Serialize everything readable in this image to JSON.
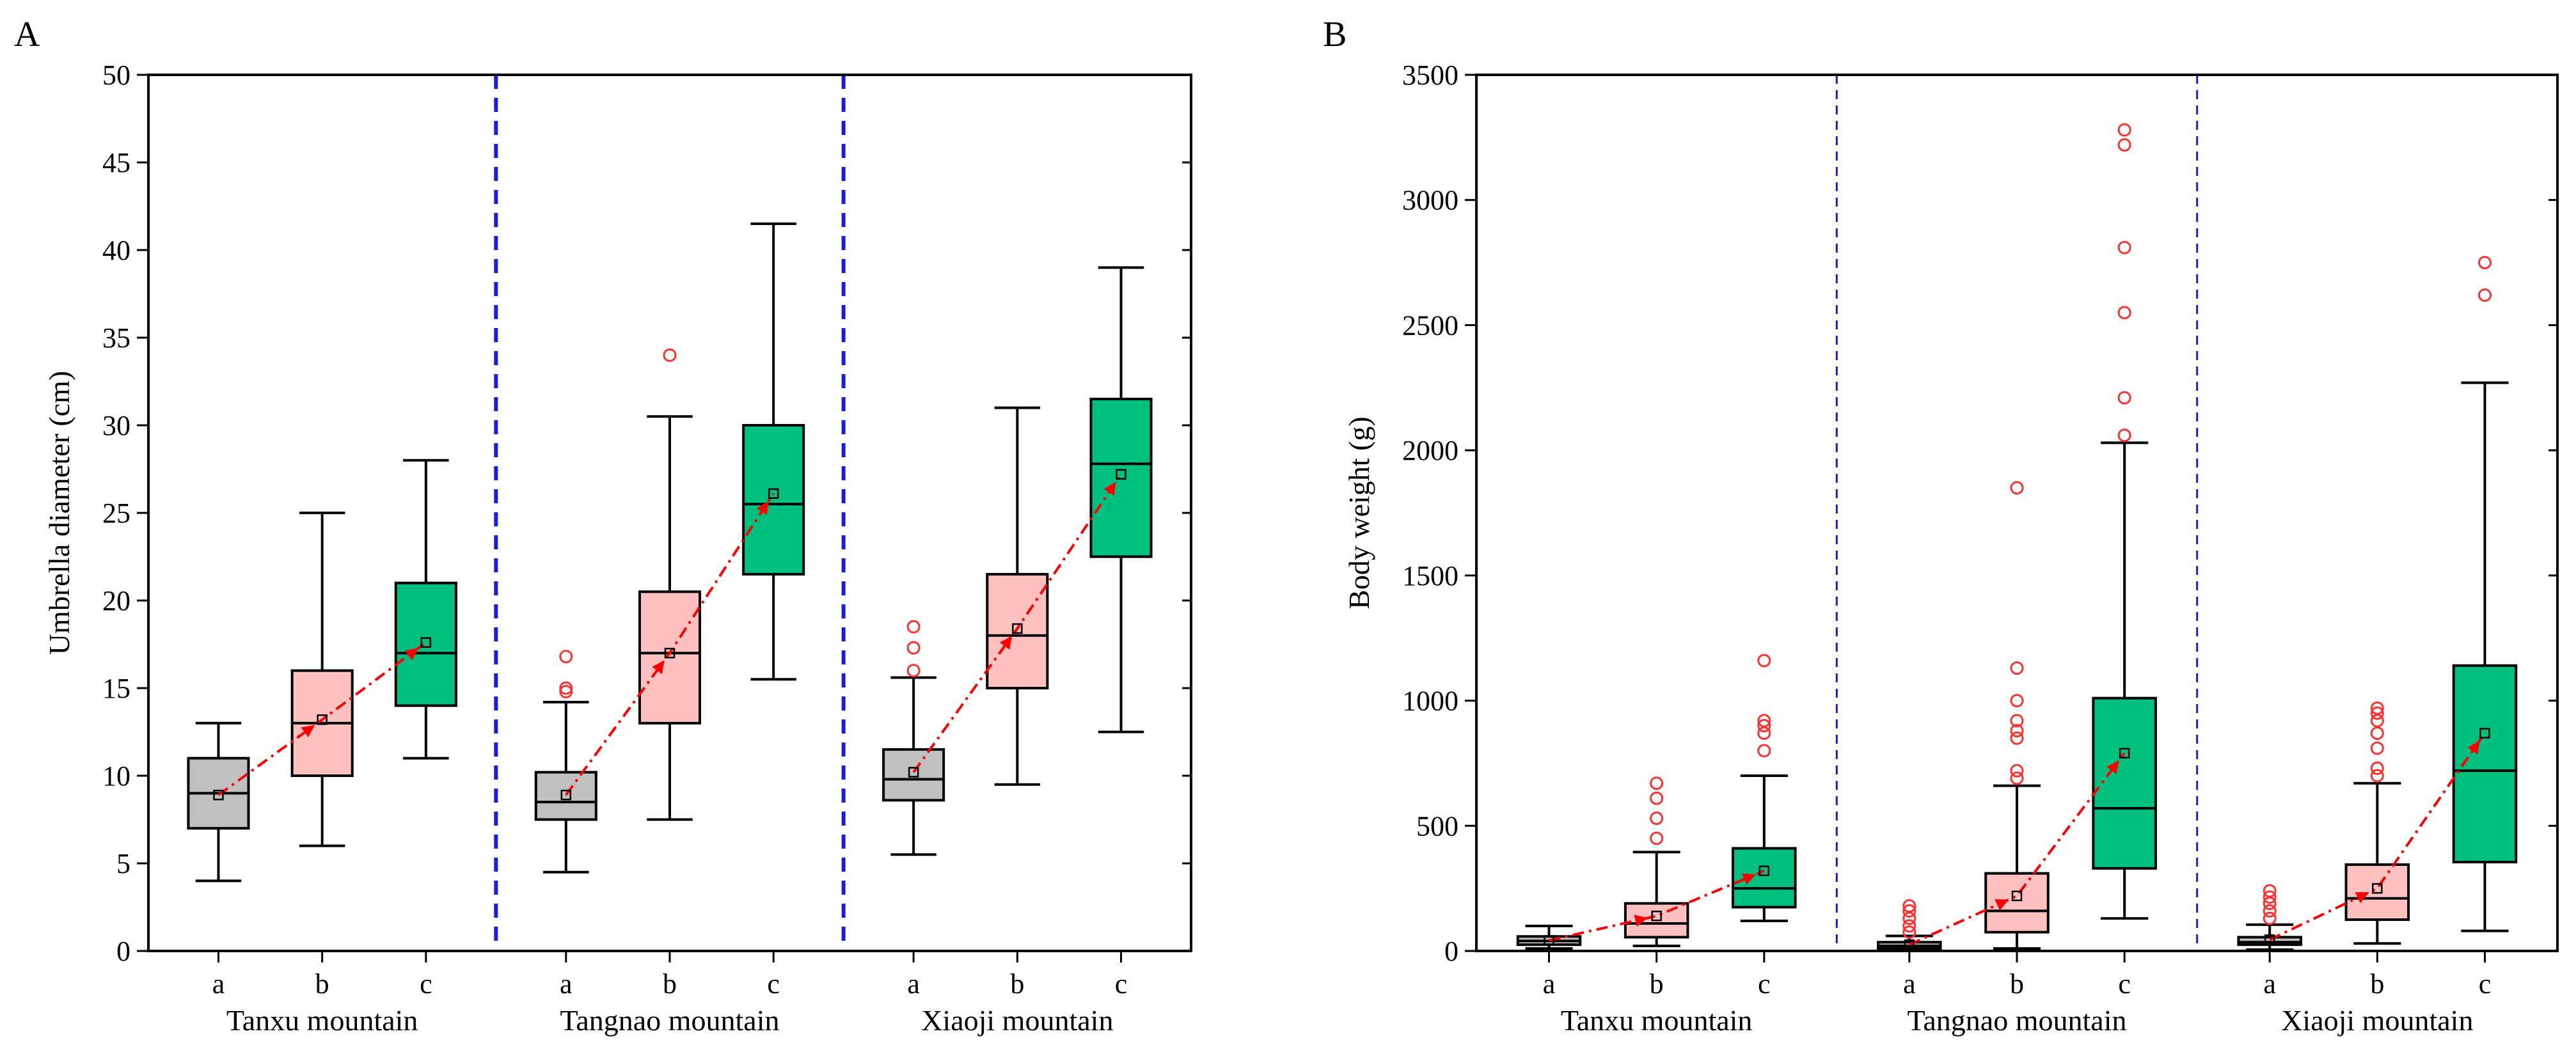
{
  "panels": [
    {
      "label": "A",
      "chart_data": {
        "type": "box",
        "title": "",
        "xlabel": "",
        "ylabel": "Umbrella diameter (cm)",
        "ylim": [
          0,
          50
        ],
        "yticks": [
          0,
          5,
          10,
          15,
          20,
          25,
          30,
          35,
          40,
          45,
          50
        ],
        "categories": [
          "a",
          "b",
          "c"
        ],
        "groups": [
          {
            "name": "Tanxu mountain",
            "boxes": [
              {
                "cat": "a",
                "color": "#c0c0c0",
                "min": 4,
                "q1": 7,
                "median": 9,
                "q3": 11,
                "max": 13,
                "mean": 8.9,
                "outliers": []
              },
              {
                "cat": "b",
                "color": "#ffc0c0",
                "min": 6,
                "q1": 10,
                "median": 13,
                "q3": 16,
                "max": 25,
                "mean": 13.2,
                "outliers": []
              },
              {
                "cat": "c",
                "color": "#00c07f",
                "min": 11,
                "q1": 14,
                "median": 17,
                "q3": 21,
                "max": 28,
                "mean": 17.6,
                "outliers": []
              }
            ]
          },
          {
            "name": "Tangnao mountain",
            "boxes": [
              {
                "cat": "a",
                "color": "#c0c0c0",
                "min": 4.5,
                "q1": 7.5,
                "median": 8.5,
                "q3": 10.2,
                "max": 14.2,
                "mean": 8.9,
                "outliers": [
                  14.8,
                  15.0,
                  16.8
                ]
              },
              {
                "cat": "b",
                "color": "#ffc0c0",
                "min": 7.5,
                "q1": 13,
                "median": 17,
                "q3": 20.5,
                "max": 30.5,
                "mean": 17.0,
                "outliers": [
                  34
                ]
              },
              {
                "cat": "c",
                "color": "#00c07f",
                "min": 15.5,
                "q1": 21.5,
                "median": 25.5,
                "q3": 30,
                "max": 41.5,
                "mean": 26.1,
                "outliers": []
              }
            ]
          },
          {
            "name": "Xiaoji mountain",
            "boxes": [
              {
                "cat": "a",
                "color": "#c0c0c0",
                "min": 5.5,
                "q1": 8.6,
                "median": 9.8,
                "q3": 11.5,
                "max": 15.6,
                "mean": 10.2,
                "outliers": [
                  16.0,
                  17.3,
                  18.5
                ]
              },
              {
                "cat": "b",
                "color": "#ffc0c0",
                "min": 9.5,
                "q1": 15,
                "median": 18,
                "q3": 21.5,
                "max": 31,
                "mean": 18.4,
                "outliers": []
              },
              {
                "cat": "c",
                "color": "#00c07f",
                "min": 12.5,
                "q1": 22.5,
                "median": 27.8,
                "q3": 31.5,
                "max": 39,
                "mean": 27.2,
                "outliers": []
              }
            ]
          }
        ],
        "trend_line_color": "#ff0000",
        "separator_color": "#1a1ae6"
      }
    },
    {
      "label": "B",
      "chart_data": {
        "type": "box",
        "title": "",
        "xlabel": "",
        "ylabel": "Body weight (g)",
        "ylim": [
          0,
          3500
        ],
        "yticks": [
          0,
          500,
          1000,
          1500,
          2000,
          2500,
          3000,
          3500
        ],
        "categories": [
          "a",
          "b",
          "c"
        ],
        "groups": [
          {
            "name": "Tanxu mountain",
            "boxes": [
              {
                "cat": "a",
                "color": "#c0c0c0",
                "min": 10,
                "q1": 25,
                "median": 40,
                "q3": 58,
                "max": 100,
                "mean": 42,
                "outliers": []
              },
              {
                "cat": "b",
                "color": "#ffc0c0",
                "min": 20,
                "q1": 55,
                "median": 110,
                "q3": 190,
                "max": 395,
                "mean": 140,
                "outliers": [
                  450,
                  530,
                  610,
                  670
                ]
              },
              {
                "cat": "c",
                "color": "#00c07f",
                "min": 120,
                "q1": 175,
                "median": 250,
                "q3": 410,
                "max": 700,
                "mean": 320,
                "outliers": [
                  800,
                  870,
                  900,
                  920,
                  1160
                ]
              }
            ]
          },
          {
            "name": "Tangnao mountain",
            "boxes": [
              {
                "cat": "a",
                "color": "#c0c0c0",
                "min": 0,
                "q1": 10,
                "median": 20,
                "q3": 35,
                "max": 60,
                "mean": 25,
                "outliers": [
                  75,
                  100,
                  130,
                  160,
                  180
                ]
              },
              {
                "cat": "b",
                "color": "#ffc0c0",
                "min": 10,
                "q1": 75,
                "median": 160,
                "q3": 310,
                "max": 660,
                "mean": 220,
                "outliers": [
                  690,
                  720,
                  850,
                  880,
                  920,
                  1000,
                  1130,
                  1850
                ]
              },
              {
                "cat": "c",
                "color": "#00c07f",
                "min": 130,
                "q1": 330,
                "median": 570,
                "q3": 1010,
                "max": 2030,
                "mean": 790,
                "outliers": [
                  2060,
                  2210,
                  2550,
                  2810,
                  3220,
                  3280
                ]
              }
            ]
          },
          {
            "name": "Xiaoji mountain",
            "boxes": [
              {
                "cat": "a",
                "color": "#c0c0c0",
                "min": 5,
                "q1": 25,
                "median": 35,
                "q3": 55,
                "max": 105,
                "mean": 45,
                "outliers": [
                  130,
                  160,
                  190,
                  215,
                  240
                ]
              },
              {
                "cat": "b",
                "color": "#ffc0c0",
                "min": 30,
                "q1": 125,
                "median": 210,
                "q3": 345,
                "max": 670,
                "mean": 250,
                "outliers": [
                  700,
                  730,
                  810,
                  870,
                  920,
                  950,
                  970
                ]
              },
              {
                "cat": "c",
                "color": "#00c07f",
                "min": 80,
                "q1": 355,
                "median": 720,
                "q3": 1140,
                "max": 2270,
                "mean": 870,
                "outliers": [
                  2620,
                  2750
                ]
              }
            ]
          }
        ],
        "trend_line_color": "#ff0000",
        "separator_color": "#1a1ae6"
      }
    }
  ]
}
